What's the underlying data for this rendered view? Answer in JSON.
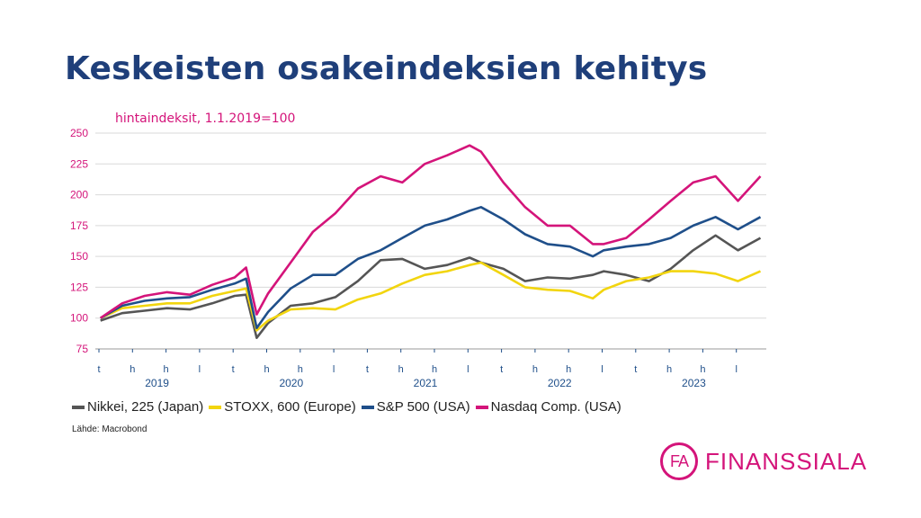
{
  "title": "Keskeisten osakeindeksien kehitys",
  "subtitle": "hintaindeksit, 1.1.2019=100",
  "source": "Lähde: Macrobond",
  "logo": {
    "mark": "FA",
    "name": "FINANSSIALA"
  },
  "chart_data": {
    "type": "line",
    "ylim": [
      75,
      250
    ],
    "yticks": [
      75,
      100,
      125,
      150,
      175,
      200,
      225,
      250
    ],
    "month_labels": [
      "t",
      "h",
      "h",
      "l",
      "t",
      "h",
      "h",
      "l",
      "t",
      "h",
      "h",
      "l",
      "t",
      "h",
      "h",
      "l",
      "t",
      "h",
      "h",
      "l"
    ],
    "years": [
      "2019",
      "2020",
      "2021",
      "2022",
      "2023"
    ],
    "grid": true,
    "legend_position": "bottom",
    "x": [
      "2019-01",
      "2019-03",
      "2019-05",
      "2019-07",
      "2019-09",
      "2019-11",
      "2020-01",
      "2020-02",
      "2020-03",
      "2020-04",
      "2020-06",
      "2020-08",
      "2020-10",
      "2020-12",
      "2021-02",
      "2021-04",
      "2021-06",
      "2021-08",
      "2021-10",
      "2021-11",
      "2022-01",
      "2022-03",
      "2022-05",
      "2022-07",
      "2022-09",
      "2022-10",
      "2022-12",
      "2023-02",
      "2023-04",
      "2023-06",
      "2023-08",
      "2023-10",
      "2023-12"
    ],
    "series": [
      {
        "name": "Nikkei, 225 (Japan)",
        "color": "#555555",
        "values": [
          98,
          104,
          106,
          108,
          107,
          112,
          118,
          119,
          84,
          96,
          110,
          112,
          117,
          130,
          147,
          148,
          140,
          143,
          149,
          145,
          140,
          130,
          133,
          132,
          135,
          138,
          135,
          130,
          140,
          155,
          167,
          155,
          165
        ]
      },
      {
        "name": "STOXX, 600 (Europe)",
        "color": "#f2d50f",
        "values": [
          100,
          108,
          110,
          112,
          112,
          118,
          122,
          124,
          90,
          98,
          107,
          108,
          107,
          115,
          120,
          128,
          135,
          138,
          143,
          145,
          135,
          125,
          123,
          122,
          116,
          123,
          130,
          133,
          138,
          138,
          136,
          130,
          138
        ]
      },
      {
        "name": "S&P 500 (USA)",
        "color": "#1f4f8a",
        "values": [
          100,
          110,
          114,
          116,
          117,
          123,
          128,
          132,
          92,
          105,
          124,
          135,
          135,
          148,
          155,
          165,
          175,
          180,
          187,
          190,
          180,
          168,
          160,
          158,
          150,
          155,
          158,
          160,
          165,
          175,
          182,
          172,
          182
        ]
      },
      {
        "name": "Nasdaq Comp. (USA)",
        "color": "#d4147a",
        "values": [
          100,
          112,
          118,
          121,
          119,
          127,
          133,
          141,
          103,
          120,
          145,
          170,
          185,
          205,
          215,
          210,
          225,
          232,
          240,
          235,
          210,
          190,
          175,
          175,
          160,
          160,
          165,
          180,
          195,
          210,
          215,
          195,
          215
        ]
      }
    ]
  }
}
